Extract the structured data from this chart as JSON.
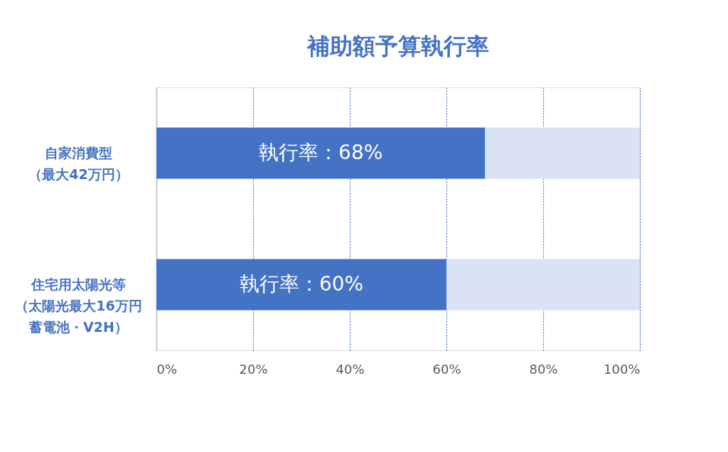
{
  "chart_data": {
    "type": "bar",
    "title": "補助額予算執行率",
    "orientation": "horizontal",
    "stacked": true,
    "categories": [
      "自家消費型（最大42万円）",
      "住宅用太陽光等（太陽光最大16万円蓄電池・V2H）"
    ],
    "series": [
      {
        "color": "#4472c4",
        "values": [
          68,
          60
        ],
        "value_labels": [
          "執行率：68%",
          "執行率：60%"
        ]
      },
      {
        "color": "#dae3f3",
        "values": [
          32,
          40
        ]
      }
    ],
    "xlim": [
      0,
      100
    ],
    "xticks": [
      {
        "value": 0,
        "label": "0%"
      },
      {
        "value": 20,
        "label": "20%"
      },
      {
        "value": 40,
        "label": "40%"
      },
      {
        "value": 60,
        "label": "60%"
      },
      {
        "value": 80,
        "label": "80%"
      },
      {
        "value": 100,
        "label": "100%"
      }
    ],
    "grid": "x",
    "legend": false
  }
}
